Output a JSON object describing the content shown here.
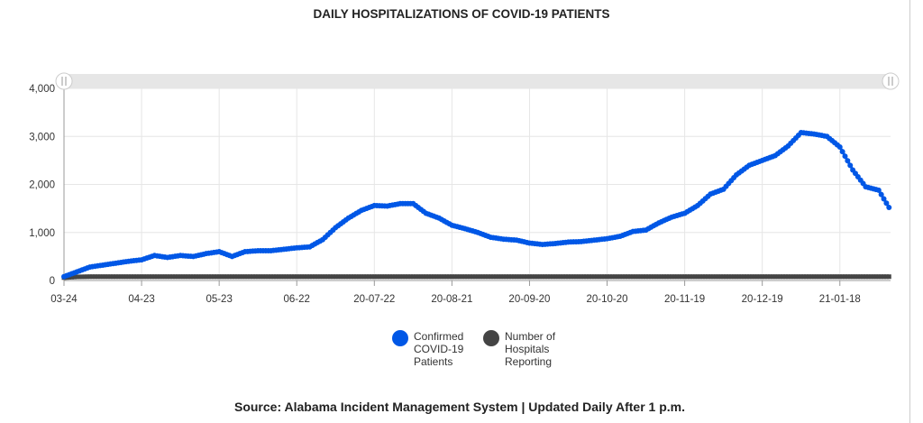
{
  "chart_data": {
    "type": "scatter",
    "title": "DAILY HOSPITALIZATIONS OF COVID-19 PATIENTS",
    "source": "Source: Alabama Incident Management System | Updated Daily After 1 p.m.",
    "xlabel": "",
    "ylabel": "",
    "ylim": [
      0,
      4000
    ],
    "y_ticks": [
      "0",
      "1,000",
      "2,000",
      "3,000",
      "4,000"
    ],
    "y_tick_values": [
      0,
      1000,
      2000,
      3000,
      4000
    ],
    "x_tick_labels": [
      "03-24",
      "04-23",
      "05-23",
      "06-22",
      "20-07-22",
      "20-08-21",
      "20-09-20",
      "20-10-20",
      "20-11-19",
      "20-12-19",
      "21-01-18"
    ],
    "x_tick_days": [
      0,
      30,
      60,
      90,
      120,
      150,
      180,
      210,
      240,
      270,
      300
    ],
    "xlim_days": [
      0,
      320
    ],
    "x_days": [
      0,
      5,
      10,
      15,
      20,
      25,
      30,
      35,
      40,
      45,
      50,
      55,
      60,
      65,
      70,
      75,
      80,
      85,
      90,
      95,
      100,
      105,
      110,
      115,
      120,
      125,
      130,
      135,
      140,
      145,
      150,
      155,
      160,
      165,
      170,
      175,
      180,
      185,
      190,
      195,
      200,
      205,
      210,
      215,
      220,
      225,
      230,
      235,
      240,
      245,
      250,
      255,
      260,
      265,
      270,
      275,
      280,
      285,
      290,
      295,
      300,
      305,
      310,
      315,
      319
    ],
    "grid": true,
    "legend_position": "bottom",
    "series": [
      {
        "name": "Confirmed COVID-19 Patients",
        "color": "#0057e6",
        "values": [
          80,
          180,
          280,
          320,
          360,
          400,
          430,
          520,
          480,
          520,
          500,
          560,
          600,
          500,
          600,
          620,
          620,
          650,
          680,
          700,
          850,
          1100,
          1300,
          1460,
          1560,
          1550,
          1600,
          1600,
          1400,
          1300,
          1150,
          1080,
          1000,
          900,
          860,
          840,
          780,
          750,
          770,
          800,
          810,
          840,
          870,
          920,
          1020,
          1050,
          1200,
          1320,
          1400,
          1560,
          1800,
          1900,
          2200,
          2400,
          2500,
          2600,
          2800,
          3080,
          3050,
          3000,
          2780,
          2300,
          1950,
          1880,
          1520
        ]
      },
      {
        "name": "Number of Hospitals Reporting",
        "color": "#444444",
        "values": [
          60,
          75,
          80,
          80,
          80,
          80,
          80,
          80,
          80,
          80,
          80,
          80,
          80,
          80,
          80,
          80,
          80,
          80,
          80,
          80,
          80,
          80,
          80,
          80,
          80,
          80,
          80,
          80,
          80,
          80,
          80,
          80,
          80,
          80,
          80,
          80,
          80,
          80,
          80,
          80,
          80,
          80,
          80,
          80,
          80,
          80,
          80,
          80,
          80,
          80,
          80,
          80,
          80,
          80,
          80,
          80,
          80,
          80,
          80,
          80,
          80,
          80,
          80,
          80,
          80
        ]
      }
    ],
    "legend": [
      {
        "line1": "Confirmed",
        "line2": "COVID-19",
        "line3": "Patients"
      },
      {
        "line1": "Number of",
        "line2": "Hospitals",
        "line3": "Reporting"
      }
    ]
  }
}
